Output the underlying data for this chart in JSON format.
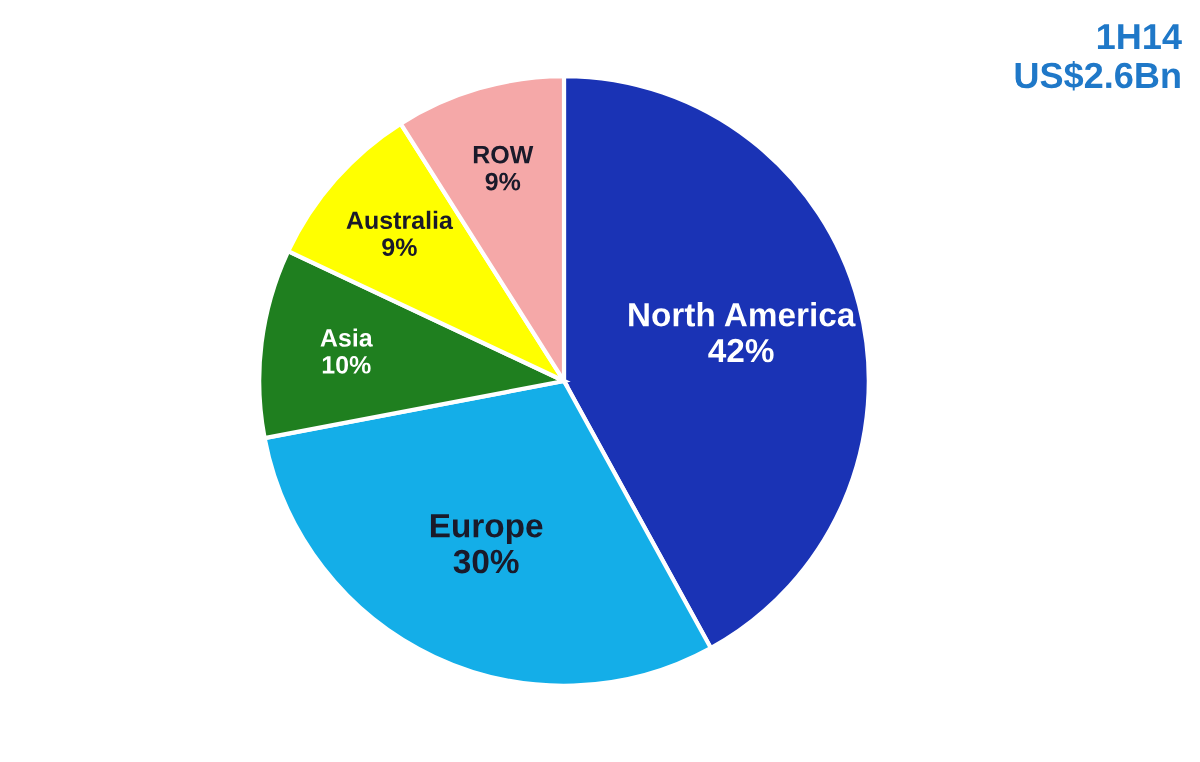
{
  "chart_data": {
    "type": "pie",
    "title": "1H14\nUS$2.6Bn",
    "categories": [
      "North America",
      "Europe",
      "Asia",
      "Australia",
      "ROW"
    ],
    "values": [
      42,
      30,
      10,
      9,
      9
    ],
    "value_labels": [
      "42%",
      "30%",
      "10%",
      "9%",
      "9%"
    ],
    "colors": [
      "#1a33b5",
      "#14aee8",
      "#1f7f1f",
      "#ffff00",
      "#f5a8a8"
    ]
  }
}
